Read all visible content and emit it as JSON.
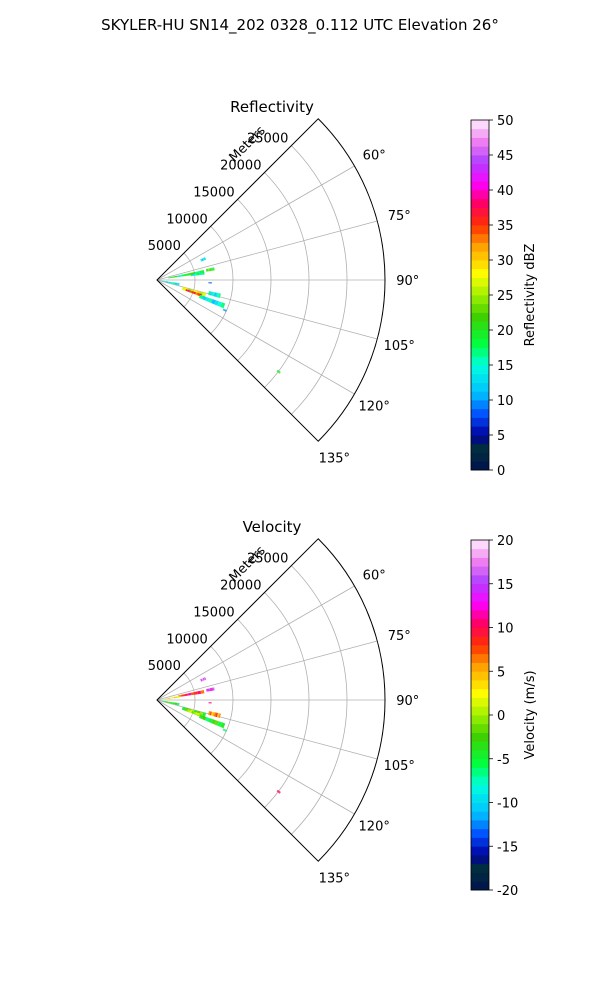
{
  "figure_title": "SKYLER-HU  SN14_202  0328_0.112 UTC Elevation 26°",
  "chart_data": [
    {
      "type": "polar-sector",
      "title": "Reflectivity",
      "radial_label": "Meters",
      "radial_ticks": [
        5000,
        10000,
        15000,
        20000,
        25000
      ],
      "angle_ticks": [
        "60°",
        "75°",
        "90°",
        "105°",
        "120°",
        "135°"
      ],
      "angle_range_deg": [
        45,
        135
      ],
      "rmax": 30000,
      "grid": true,
      "colorbar": {
        "label": "Reflectivity dBZ",
        "range": [
          0,
          50
        ],
        "ticks": [
          0,
          5,
          10,
          15,
          20,
          25,
          30,
          35,
          40,
          45,
          50
        ]
      },
      "echoes": [
        {
          "az": 66,
          "r1": 6300,
          "r2": 7000,
          "width": 3.0,
          "value": 13
        },
        {
          "az": 79,
          "r1": 6600,
          "r2": 7700,
          "width": 3.0,
          "value": 21
        },
        {
          "az": 80,
          "r1": 1500,
          "r2": 6300,
          "width": 4.0,
          "value": 19
        },
        {
          "az": 82,
          "r1": 4500,
          "r2": 6300,
          "width": 3.0,
          "value": 16
        },
        {
          "az": 93,
          "r1": 6800,
          "r2": 7200,
          "width": 1.5,
          "value": 8
        },
        {
          "az": 101,
          "r1": 600,
          "r2": 3000,
          "width": 6.0,
          "value": 14
        },
        {
          "az": 104,
          "r1": 7000,
          "r2": 8600,
          "width": 4.0,
          "value": 14
        },
        {
          "az": 108,
          "r1": 3500,
          "r2": 6700,
          "width": 6.0,
          "value": 27
        },
        {
          "az": 109,
          "r1": 4000,
          "r2": 6200,
          "width": 3.0,
          "value": 36
        },
        {
          "az": 111,
          "r1": 6000,
          "r2": 9500,
          "width": 4.0,
          "value": 14
        },
        {
          "az": 114,
          "r1": 9500,
          "r2": 10000,
          "width": 1.5,
          "value": 11
        },
        {
          "az": 127,
          "r1": 19800,
          "r2": 20300,
          "width": 0.8,
          "value": 20
        }
      ]
    },
    {
      "type": "polar-sector",
      "title": "Velocity",
      "radial_label": "Meters",
      "radial_ticks": [
        5000,
        10000,
        15000,
        20000,
        25000
      ],
      "angle_ticks": [
        "60°",
        "75°",
        "90°",
        "105°",
        "120°",
        "135°"
      ],
      "angle_range_deg": [
        45,
        135
      ],
      "rmax": 30000,
      "grid": true,
      "colorbar": {
        "label": "Velocity (m/s)",
        "range": [
          -20,
          20
        ],
        "ticks": [
          -20,
          -15,
          -10,
          -5,
          0,
          5,
          10,
          15,
          20
        ]
      },
      "echoes": [
        {
          "az": 66,
          "r1": 6300,
          "r2": 7000,
          "width": 3.0,
          "value": 16
        },
        {
          "az": 79,
          "r1": 6600,
          "r2": 7700,
          "width": 3.0,
          "value": 14
        },
        {
          "az": 80,
          "r1": 2800,
          "r2": 6300,
          "width": 4.0,
          "value": 9
        },
        {
          "az": 82,
          "r1": 1000,
          "r2": 3000,
          "width": 4.0,
          "value": 3
        },
        {
          "az": 93,
          "r1": 6800,
          "r2": 7200,
          "width": 1.5,
          "value": 10
        },
        {
          "az": 101,
          "r1": 600,
          "r2": 3000,
          "width": 6.0,
          "value": -4
        },
        {
          "az": 104,
          "r1": 7000,
          "r2": 8600,
          "width": 4.0,
          "value": 6
        },
        {
          "az": 108,
          "r1": 3500,
          "r2": 6700,
          "width": 6.0,
          "value": -2
        },
        {
          "az": 109,
          "r1": 4000,
          "r2": 6200,
          "width": 3.0,
          "value": 1
        },
        {
          "az": 111,
          "r1": 6000,
          "r2": 9500,
          "width": 4.0,
          "value": -4
        },
        {
          "az": 114,
          "r1": 9500,
          "r2": 10000,
          "width": 1.5,
          "value": -6
        },
        {
          "az": 127,
          "r1": 19800,
          "r2": 20300,
          "width": 0.8,
          "value": 10
        }
      ]
    }
  ]
}
